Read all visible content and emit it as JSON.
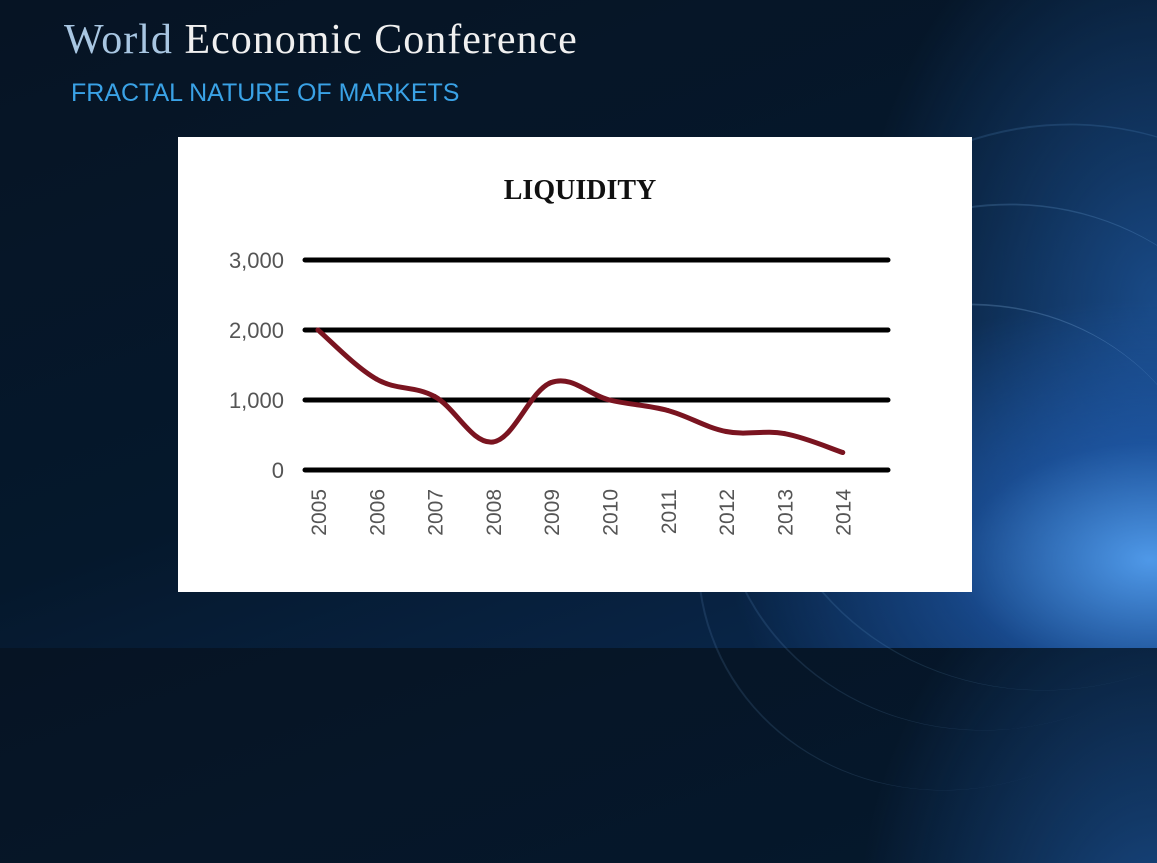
{
  "slide": {
    "title_part1": "World",
    "title_part2": "Economic Conference",
    "subtitle": "FRACTAL NATURE OF MARKETS"
  },
  "chart_data": {
    "type": "line",
    "title": "LIQUIDITY",
    "xlabel": "",
    "ylabel": "",
    "categories": [
      "2005",
      "2006",
      "2007",
      "2008",
      "2009",
      "2010",
      "2011",
      "2012",
      "2013",
      "2014"
    ],
    "series": [
      {
        "values": [
          2000,
          1300,
          1050,
          400,
          1250,
          1000,
          850,
          550,
          520,
          250
        ],
        "color": "#7a1420"
      }
    ],
    "yticks": [
      {
        "value": 0,
        "label": "0"
      },
      {
        "value": 1000,
        "label": "1,000"
      },
      {
        "value": 2000,
        "label": "2,000"
      },
      {
        "value": 3000,
        "label": "3,000"
      }
    ],
    "ylim": [
      0,
      3000
    ],
    "grid": true,
    "legend": "none"
  }
}
